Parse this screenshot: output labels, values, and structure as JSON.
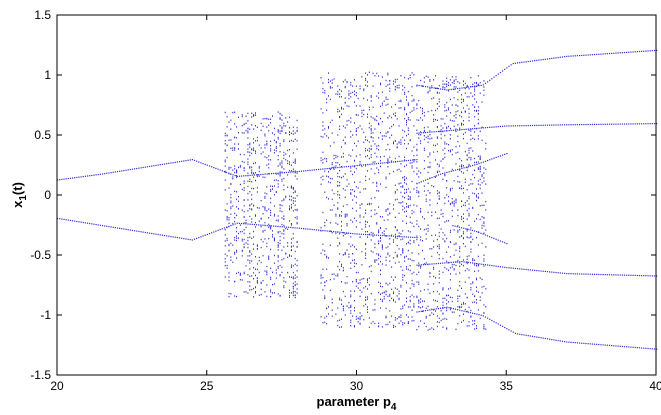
{
  "chart_data": {
    "type": "scatter",
    "title": "",
    "xlabel": {
      "base": "parameter p",
      "subscript": "4"
    },
    "ylabel": {
      "base": "x",
      "subscript": "1",
      "suffix": "(t)"
    },
    "xlim": [
      20,
      40
    ],
    "ylim": [
      -1.5,
      1.5
    ],
    "xticks": [
      20,
      25,
      30,
      35,
      40
    ],
    "yticks": [
      1.5,
      1,
      0.5,
      0,
      -0.5,
      -1,
      -1.5
    ],
    "xtick_labels": [
      "20",
      "25",
      "30",
      "35",
      "40"
    ],
    "ytick_labels": [
      "1.5",
      "1",
      "0.5",
      "0",
      "-0.5",
      "-1",
      "-1.5"
    ],
    "grid": false,
    "legend": "none",
    "marker_color": "#2e2ed6",
    "series": [
      {
        "kind": "branch",
        "points": [
          [
            20,
            0.13
          ],
          [
            21.5,
            0.18
          ],
          [
            23,
            0.24
          ],
          [
            24.5,
            0.3
          ],
          [
            26,
            0.16
          ],
          [
            28,
            0.2
          ],
          [
            30,
            0.25
          ],
          [
            32,
            0.3
          ]
        ]
      },
      {
        "kind": "branch",
        "points": [
          [
            20,
            -0.19
          ],
          [
            21.5,
            -0.25
          ],
          [
            23,
            -0.31
          ],
          [
            24.5,
            -0.37
          ],
          [
            26,
            -0.23
          ],
          [
            28,
            -0.27
          ],
          [
            30,
            -0.32
          ],
          [
            32,
            -0.35
          ]
        ]
      },
      {
        "kind": "branch",
        "points": [
          [
            32,
            0.92
          ],
          [
            33,
            0.88
          ],
          [
            34.2,
            0.92
          ],
          [
            35.2,
            1.1
          ],
          [
            37,
            1.16
          ],
          [
            40,
            1.21
          ]
        ]
      },
      {
        "kind": "branch",
        "points": [
          [
            32,
            0.52
          ],
          [
            33.5,
            0.55
          ],
          [
            35,
            0.58
          ],
          [
            37,
            0.59
          ],
          [
            40,
            0.6
          ]
        ]
      },
      {
        "kind": "branch",
        "points": [
          [
            32,
            0.1
          ],
          [
            32.8,
            0.18
          ],
          [
            34,
            0.26
          ],
          [
            35,
            0.35
          ]
        ]
      },
      {
        "kind": "branch",
        "points": [
          [
            33.2,
            -0.25
          ],
          [
            34,
            -0.3
          ],
          [
            35,
            -0.4
          ]
        ]
      },
      {
        "kind": "branch",
        "points": [
          [
            32,
            -0.58
          ],
          [
            33.5,
            -0.55
          ],
          [
            35,
            -0.6
          ],
          [
            37,
            -0.65
          ],
          [
            40,
            -0.67
          ]
        ]
      },
      {
        "kind": "branch",
        "points": [
          [
            32,
            -0.97
          ],
          [
            33,
            -0.93
          ],
          [
            34.2,
            -1.0
          ],
          [
            35.3,
            -1.15
          ],
          [
            37,
            -1.22
          ],
          [
            40,
            -1.28
          ]
        ]
      },
      {
        "kind": "band",
        "x": [
          25.6,
          28.0
        ],
        "y": [
          -0.85,
          0.7
        ]
      },
      {
        "kind": "band",
        "x": [
          28.8,
          31.9
        ],
        "y": [
          -1.1,
          1.03
        ]
      },
      {
        "kind": "band",
        "x": [
          32,
          34.3
        ],
        "y": [
          -1.12,
          1.0
        ]
      }
    ]
  }
}
